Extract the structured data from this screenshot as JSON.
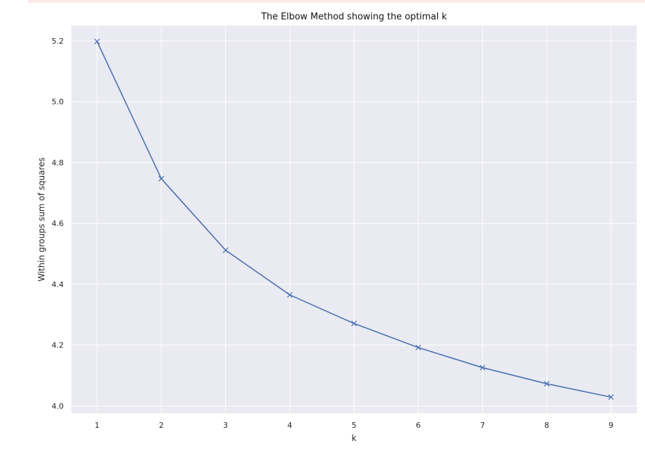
{
  "chart_data": {
    "type": "line",
    "title": "The Elbow Method showing the optimal k",
    "xlabel": "k",
    "ylabel": "Within groups sum of squares",
    "x": [
      1,
      2,
      3,
      4,
      5,
      6,
      7,
      8,
      9
    ],
    "series": [
      {
        "values": [
          5.198,
          4.747,
          4.512,
          4.365,
          4.271,
          4.192,
          4.126,
          4.073,
          4.029
        ],
        "color": "#4c72b0",
        "marker": "x"
      }
    ],
    "xticks": [
      "1",
      "2",
      "3",
      "4",
      "5",
      "6",
      "7",
      "8",
      "9"
    ],
    "yticks": [
      "4.0",
      "4.2",
      "4.4",
      "4.6",
      "4.8",
      "5.0",
      "5.2"
    ],
    "xlim": [
      0.6,
      9.4
    ],
    "ylim": [
      3.976,
      5.25
    ],
    "grid": true,
    "background_color": "#eaeaf2",
    "grid_color": "#ffffff"
  }
}
